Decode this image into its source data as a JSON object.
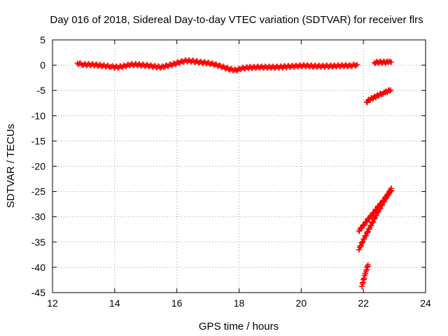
{
  "chart_data": {
    "type": "scatter",
    "title": "Day 016 of 2018, Sidereal Day-to-day VTEC variation (SDTVAR) for receiver flrs",
    "xlabel": "GPS time / hours",
    "ylabel": "SDTVAR / TECUs",
    "xlim": [
      12,
      24
    ],
    "ylim": [
      -45,
      5
    ],
    "xticks": [
      12,
      14,
      16,
      18,
      20,
      22,
      24
    ],
    "yticks": [
      5,
      0,
      -5,
      -10,
      -15,
      -20,
      -25,
      -30,
      -35,
      -40,
      -45
    ],
    "grid": true,
    "marker": "plus",
    "color": "#ff0000",
    "series": [
      {
        "points": [
          [
            12.8,
            0.4
          ],
          [
            13.0,
            0.1
          ],
          [
            13.3,
            0.1
          ],
          [
            13.6,
            -0.1
          ],
          [
            13.9,
            -0.3
          ],
          [
            14.1,
            -0.4
          ],
          [
            14.3,
            -0.2
          ],
          [
            14.5,
            0.1
          ],
          [
            14.7,
            0.1
          ],
          [
            14.9,
            0.0
          ],
          [
            15.1,
            -0.1
          ],
          [
            15.3,
            -0.3
          ],
          [
            15.5,
            -0.4
          ],
          [
            15.7,
            -0.1
          ],
          [
            15.9,
            0.2
          ],
          [
            16.1,
            0.6
          ],
          [
            16.3,
            0.9
          ],
          [
            16.5,
            0.8
          ],
          [
            16.7,
            0.6
          ],
          [
            16.9,
            0.5
          ],
          [
            17.1,
            0.3
          ],
          [
            17.3,
            0.0
          ],
          [
            17.5,
            -0.4
          ],
          [
            17.7,
            -0.8
          ],
          [
            17.9,
            -1.0
          ],
          [
            18.1,
            -0.6
          ],
          [
            18.3,
            -0.5
          ],
          [
            18.6,
            -0.4
          ],
          [
            18.9,
            -0.4
          ],
          [
            19.2,
            -0.4
          ],
          [
            19.5,
            -0.3
          ],
          [
            19.8,
            -0.2
          ],
          [
            20.1,
            -0.1
          ],
          [
            20.4,
            -0.2
          ],
          [
            20.7,
            -0.2
          ],
          [
            21.0,
            -0.2
          ],
          [
            21.3,
            -0.1
          ],
          [
            21.6,
            -0.1
          ],
          [
            21.8,
            0.1
          ]
        ]
      },
      {
        "points": [
          [
            22.35,
            0.5
          ],
          [
            22.5,
            0.6
          ],
          [
            22.65,
            0.6
          ],
          [
            22.8,
            0.6
          ],
          [
            22.9,
            0.6
          ]
        ]
      },
      {
        "points": [
          [
            22.1,
            -7.3
          ],
          [
            22.2,
            -6.8
          ],
          [
            22.3,
            -6.5
          ],
          [
            22.4,
            -6.2
          ],
          [
            22.5,
            -5.9
          ],
          [
            22.6,
            -5.6
          ],
          [
            22.7,
            -5.4
          ],
          [
            22.8,
            -5.1
          ],
          [
            22.88,
            -4.9
          ]
        ]
      },
      {
        "points": [
          [
            21.85,
            -32.8
          ],
          [
            22.0,
            -31.7
          ],
          [
            22.15,
            -30.5
          ],
          [
            22.3,
            -29.4
          ],
          [
            22.45,
            -28.2
          ],
          [
            22.6,
            -27.1
          ],
          [
            22.75,
            -25.9
          ],
          [
            22.9,
            -24.8
          ]
        ]
      },
      {
        "points": [
          [
            21.85,
            -36.5
          ],
          [
            22.0,
            -34.6
          ],
          [
            22.15,
            -32.8
          ],
          [
            22.3,
            -31.0
          ],
          [
            22.45,
            -29.2
          ],
          [
            22.6,
            -27.6
          ],
          [
            22.75,
            -26.0
          ],
          [
            22.9,
            -24.4
          ]
        ]
      },
      {
        "points": [
          [
            21.95,
            -43.8
          ],
          [
            22.0,
            -42.6
          ],
          [
            22.05,
            -41.5
          ],
          [
            22.1,
            -40.5
          ],
          [
            22.15,
            -39.5
          ]
        ]
      }
    ]
  }
}
